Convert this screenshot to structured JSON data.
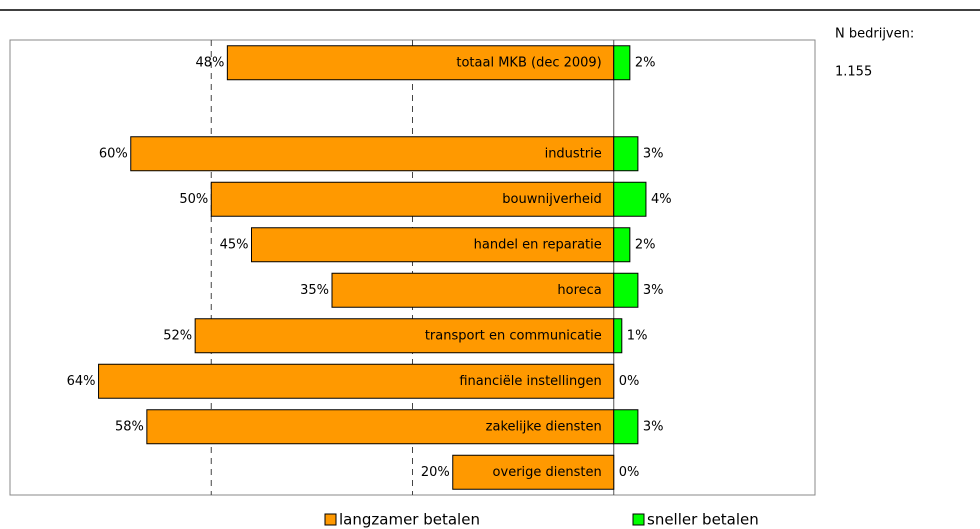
{
  "chart_data": {
    "type": "diverging-bar",
    "categories": [
      "totaal MKB (dec 2009)",
      null,
      "industrie",
      "bouwnijverheid",
      "handel en reparatie",
      "horeca",
      "transport en communicatie",
      "financiële instellingen",
      "zakelijke diensten",
      "overige diensten"
    ],
    "series": [
      {
        "name": "langzamer betalen",
        "color": "#ff9900",
        "values": [
          48,
          null,
          60,
          50,
          45,
          35,
          52,
          64,
          58,
          20
        ],
        "value_labels": [
          "48%",
          null,
          "60%",
          "50%",
          "45%",
          "35%",
          "52%",
          "64%",
          "58%",
          "20%"
        ]
      },
      {
        "name": "sneller betalen",
        "color": "#00ff00",
        "values": [
          2,
          null,
          3,
          4,
          2,
          3,
          1,
          0,
          3,
          0
        ],
        "value_labels": [
          "2%",
          null,
          "3%",
          "4%",
          "2%",
          "3%",
          "1%",
          "0%",
          "3%",
          "0%"
        ]
      }
    ],
    "xlim": [
      -75,
      25
    ],
    "xticks": [
      -50,
      -25,
      0
    ],
    "grid": true
  },
  "note": {
    "label": "N bedrijven:",
    "value": "1.155"
  }
}
